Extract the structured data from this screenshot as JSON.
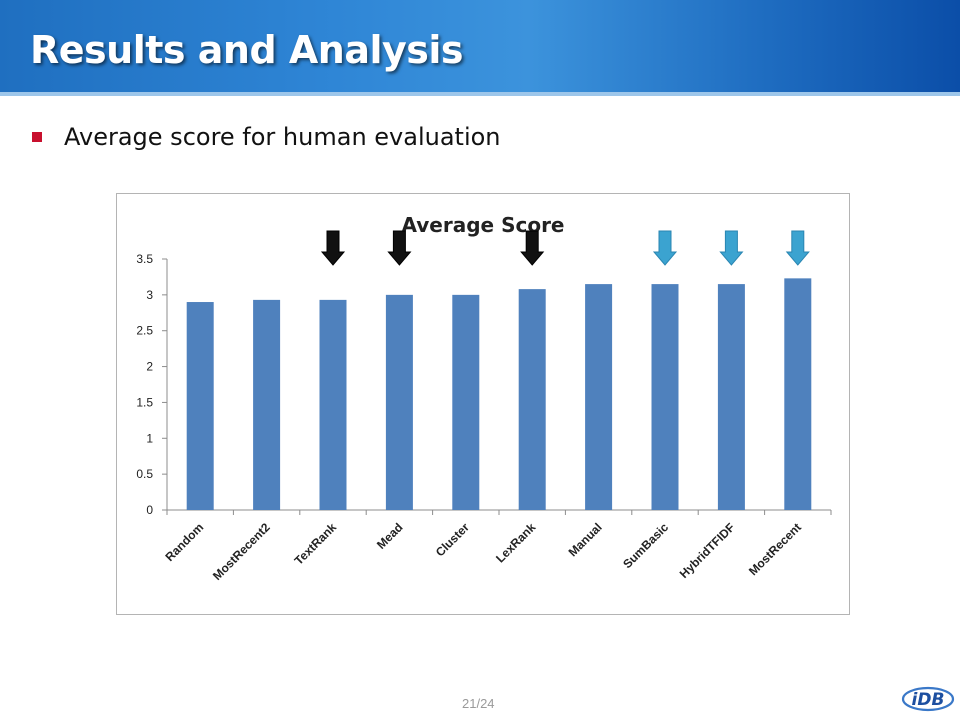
{
  "slide": {
    "title": "Results and Analysis",
    "bullet": "Average score for human evaluation",
    "page_number": "21/24",
    "logo_text": "iDB"
  },
  "colors": {
    "bar": "#4f81bd",
    "marker_dark": "#111111",
    "marker_light": "#3ba3d0",
    "bullet": "#c8102e"
  },
  "chart_data": {
    "type": "bar",
    "title": "Average Score",
    "xlabel": "",
    "ylabel": "",
    "categories": [
      "Random",
      "MostRecent2",
      "TextRank",
      "Mead",
      "Cluster",
      "LexRank",
      "Manual",
      "SumBasic",
      "HybridTFIDF",
      "MostRecent"
    ],
    "values": [
      2.9,
      2.93,
      2.93,
      3.0,
      3.0,
      3.08,
      3.15,
      3.15,
      3.15,
      3.23
    ],
    "ylim": [
      0,
      3.5
    ],
    "yticks": [
      "0",
      "0.5",
      "1",
      "1.5",
      "2",
      "2.5",
      "3",
      "3.5"
    ],
    "grid": false,
    "legend": "none",
    "markers": [
      {
        "category": "TextRank",
        "style": "dark"
      },
      {
        "category": "Mead",
        "style": "dark"
      },
      {
        "category": "LexRank",
        "style": "dark"
      },
      {
        "category": "SumBasic",
        "style": "light"
      },
      {
        "category": "HybridTFIDF",
        "style": "light"
      },
      {
        "category": "MostRecent",
        "style": "light"
      }
    ]
  }
}
